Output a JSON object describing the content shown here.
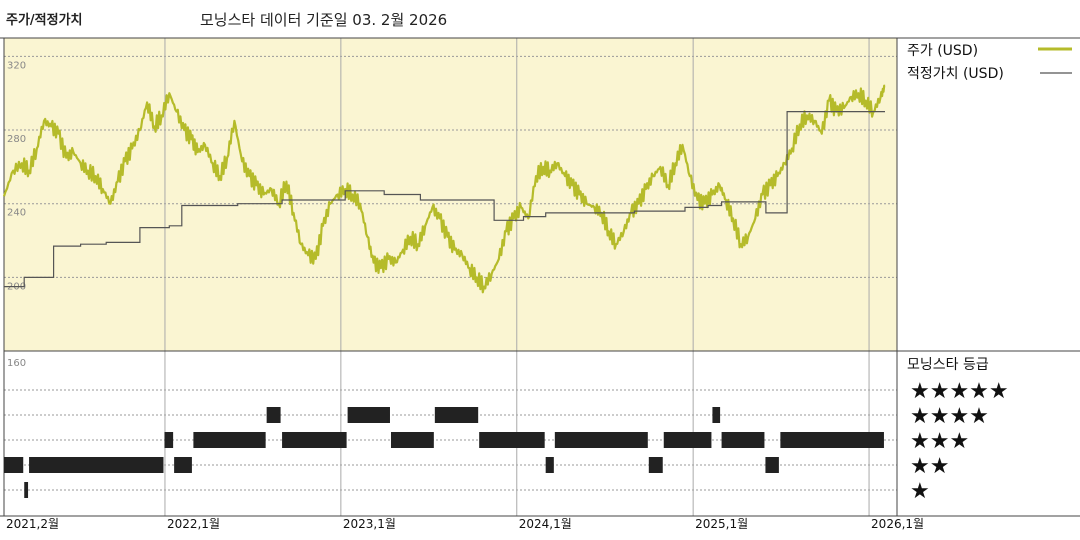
{
  "title": "주가/적정가치",
  "subtitle": "모닝스타 데이터 기준일 03. 2월 2026",
  "colors": {
    "price": "#b5bb2a",
    "fair_value": "#555555",
    "plot_bg": "#faf5d2",
    "grid": "#999999",
    "bars": "#222222"
  },
  "chart_data": [
    {
      "type": "line",
      "ylim": [
        160,
        330
      ],
      "y_ticks": [
        200,
        240,
        280,
        320
      ],
      "y_tick_labels": [
        "200",
        "240",
        "280",
        "320"
      ],
      "x_range": [
        "2021-02-01",
        "2026-02-28"
      ],
      "x_ticks": [
        "2021-02-01",
        "2022-01-01",
        "2023-01-01",
        "2024-01-01",
        "2025-01-01",
        "2026-01-01"
      ],
      "x_tick_labels": [
        "2021,2월",
        "2022,1월",
        "2023,1월",
        "2024,1월",
        "2025,1월",
        "2026,1월"
      ],
      "legend_position": "right",
      "series": [
        {
          "name": "주가 (USD)",
          "kind": "price",
          "points": [
            [
              "2021-02-01",
              244
            ],
            [
              "2021-02-20",
              258
            ],
            [
              "2021-03-10",
              262
            ],
            [
              "2021-03-25",
              258
            ],
            [
              "2021-04-10",
              270
            ],
            [
              "2021-04-25",
              285
            ],
            [
              "2021-05-10",
              282
            ],
            [
              "2021-05-25",
              278
            ],
            [
              "2021-06-10",
              265
            ],
            [
              "2021-06-25",
              268
            ],
            [
              "2021-07-10",
              262
            ],
            [
              "2021-07-25",
              258
            ],
            [
              "2021-08-10",
              255
            ],
            [
              "2021-08-25",
              248
            ],
            [
              "2021-09-10",
              240
            ],
            [
              "2021-09-25",
              252
            ],
            [
              "2021-10-10",
              263
            ],
            [
              "2021-10-25",
              270
            ],
            [
              "2021-11-10",
              280
            ],
            [
              "2021-11-25",
              295
            ],
            [
              "2021-12-10",
              282
            ],
            [
              "2021-12-25",
              288
            ],
            [
              "2022-01-10",
              300
            ],
            [
              "2022-01-25",
              290
            ],
            [
              "2022-02-10",
              280
            ],
            [
              "2022-02-25",
              275
            ],
            [
              "2022-03-10",
              268
            ],
            [
              "2022-03-25",
              272
            ],
            [
              "2022-04-10",
              262
            ],
            [
              "2022-04-25",
              255
            ],
            [
              "2022-05-10",
              265
            ],
            [
              "2022-05-25",
              285
            ],
            [
              "2022-06-10",
              263
            ],
            [
              "2022-06-25",
              255
            ],
            [
              "2022-07-10",
              250
            ],
            [
              "2022-07-25",
              245
            ],
            [
              "2022-08-10",
              248
            ],
            [
              "2022-08-25",
              240
            ],
            [
              "2022-09-10",
              252
            ],
            [
              "2022-09-25",
              235
            ],
            [
              "2022-10-10",
              218
            ],
            [
              "2022-10-25",
              212
            ],
            [
              "2022-11-10",
              210
            ],
            [
              "2022-11-25",
              228
            ],
            [
              "2022-12-10",
              240
            ],
            [
              "2022-12-25",
              245
            ],
            [
              "2023-01-10",
              248
            ],
            [
              "2023-01-25",
              245
            ],
            [
              "2023-02-10",
              240
            ],
            [
              "2023-02-25",
              222
            ],
            [
              "2023-03-10",
              208
            ],
            [
              "2023-03-25",
              205
            ],
            [
              "2023-04-10",
              210
            ],
            [
              "2023-04-25",
              208
            ],
            [
              "2023-05-10",
              215
            ],
            [
              "2023-05-25",
              222
            ],
            [
              "2023-06-10",
              218
            ],
            [
              "2023-06-25",
              228
            ],
            [
              "2023-07-10",
              238
            ],
            [
              "2023-07-25",
              232
            ],
            [
              "2023-08-10",
              222
            ],
            [
              "2023-08-25",
              215
            ],
            [
              "2023-09-10",
              212
            ],
            [
              "2023-09-25",
              205
            ],
            [
              "2023-10-10",
              200
            ],
            [
              "2023-10-25",
              195
            ],
            [
              "2023-11-10",
              202
            ],
            [
              "2023-11-25",
              210
            ],
            [
              "2023-12-10",
              225
            ],
            [
              "2023-12-25",
              232
            ],
            [
              "2024-01-10",
              238
            ],
            [
              "2024-01-25",
              232
            ],
            [
              "2024-02-10",
              255
            ],
            [
              "2024-02-25",
              260
            ],
            [
              "2024-03-10",
              258
            ],
            [
              "2024-03-25",
              262
            ],
            [
              "2024-04-10",
              255
            ],
            [
              "2024-04-25",
              250
            ],
            [
              "2024-05-10",
              245
            ],
            [
              "2024-05-25",
              240
            ],
            [
              "2024-06-10",
              238
            ],
            [
              "2024-06-25",
              235
            ],
            [
              "2024-07-10",
              225
            ],
            [
              "2024-07-25",
              218
            ],
            [
              "2024-08-10",
              225
            ],
            [
              "2024-08-25",
              235
            ],
            [
              "2024-09-10",
              240
            ],
            [
              "2024-09-25",
              248
            ],
            [
              "2024-10-10",
              255
            ],
            [
              "2024-10-25",
              260
            ],
            [
              "2024-11-10",
              250
            ],
            [
              "2024-11-25",
              262
            ],
            [
              "2024-12-10",
              272
            ],
            [
              "2024-12-25",
              255
            ],
            [
              "2025-01-10",
              242
            ],
            [
              "2025-01-25",
              240
            ],
            [
              "2025-02-10",
              245
            ],
            [
              "2025-02-25",
              250
            ],
            [
              "2025-03-10",
              242
            ],
            [
              "2025-03-25",
              232
            ],
            [
              "2025-04-10",
              218
            ],
            [
              "2025-04-25",
              222
            ],
            [
              "2025-05-10",
              232
            ],
            [
              "2025-05-25",
              245
            ],
            [
              "2025-06-10",
              250
            ],
            [
              "2025-06-25",
              255
            ],
            [
              "2025-07-10",
              262
            ],
            [
              "2025-07-25",
              270
            ],
            [
              "2025-08-10",
              283
            ],
            [
              "2025-08-25",
              288
            ],
            [
              "2025-09-10",
              285
            ],
            [
              "2025-09-25",
              278
            ],
            [
              "2025-10-10",
              296
            ],
            [
              "2025-10-25",
              290
            ],
            [
              "2025-11-10",
              292
            ],
            [
              "2025-11-25",
              298
            ],
            [
              "2025-12-10",
              300
            ],
            [
              "2025-12-25",
              296
            ],
            [
              "2026-01-10",
              290
            ],
            [
              "2026-01-25",
              298
            ],
            [
              "2026-02-03",
              304
            ]
          ]
        },
        {
          "name": "적정가치 (USD)",
          "kind": "fair_value",
          "points": [
            [
              "2021-02-01",
              195
            ],
            [
              "2021-03-15",
              200
            ],
            [
              "2021-05-15",
              217
            ],
            [
              "2021-07-10",
              218
            ],
            [
              "2021-09-01",
              219
            ],
            [
              "2021-11-10",
              227
            ],
            [
              "2022-01-10",
              228
            ],
            [
              "2022-02-05",
              239
            ],
            [
              "2022-06-01",
              240
            ],
            [
              "2022-09-01",
              242
            ],
            [
              "2023-01-10",
              247
            ],
            [
              "2023-04-01",
              245
            ],
            [
              "2023-06-15",
              242
            ],
            [
              "2023-11-15",
              231
            ],
            [
              "2024-01-15",
              233
            ],
            [
              "2024-03-01",
              235
            ],
            [
              "2024-06-01",
              235
            ],
            [
              "2024-09-01",
              236
            ],
            [
              "2024-12-15",
              238
            ],
            [
              "2025-02-01",
              239
            ],
            [
              "2025-03-01",
              241
            ],
            [
              "2025-06-01",
              235
            ],
            [
              "2025-07-10",
              235
            ],
            [
              "2025-07-15",
              290
            ],
            [
              "2026-02-03",
              290
            ]
          ]
        }
      ]
    },
    {
      "type": "bar",
      "title": "모닝스타 등급",
      "y_tick_label": "160",
      "rating_levels": [
        "★★★★★",
        "★★★★",
        "★★★",
        "★★",
        "★"
      ],
      "segments": [
        {
          "start": "2021-02-01",
          "end": "2021-03-15",
          "stars": 2
        },
        {
          "start": "2021-03-15",
          "end": "2021-03-25",
          "stars": 1
        },
        {
          "start": "2021-03-25",
          "end": "2021-12-31",
          "stars": 2
        },
        {
          "start": "2021-12-31",
          "end": "2022-01-20",
          "stars": 3
        },
        {
          "start": "2022-01-20",
          "end": "2022-02-28",
          "stars": 2
        },
        {
          "start": "2022-03-01",
          "end": "2022-07-31",
          "stars": 3
        },
        {
          "start": "2022-07-31",
          "end": "2022-08-31",
          "stars": 4
        },
        {
          "start": "2022-09-01",
          "end": "2023-01-15",
          "stars": 3
        },
        {
          "start": "2023-01-15",
          "end": "2023-04-15",
          "stars": 4
        },
        {
          "start": "2023-04-15",
          "end": "2023-07-15",
          "stars": 3
        },
        {
          "start": "2023-07-15",
          "end": "2023-10-15",
          "stars": 4
        },
        {
          "start": "2023-10-15",
          "end": "2024-03-01",
          "stars": 3
        },
        {
          "start": "2024-03-01",
          "end": "2024-03-20",
          "stars": 2
        },
        {
          "start": "2024-03-20",
          "end": "2024-10-01",
          "stars": 3
        },
        {
          "start": "2024-10-01",
          "end": "2024-11-01",
          "stars": 2
        },
        {
          "start": "2024-11-01",
          "end": "2025-02-10",
          "stars": 3
        },
        {
          "start": "2025-02-10",
          "end": "2025-02-28",
          "stars": 4
        },
        {
          "start": "2025-03-01",
          "end": "2025-05-31",
          "stars": 3
        },
        {
          "start": "2025-05-31",
          "end": "2025-06-30",
          "stars": 2
        },
        {
          "start": "2025-07-01",
          "end": "2026-02-03",
          "stars": 3
        }
      ]
    }
  ]
}
